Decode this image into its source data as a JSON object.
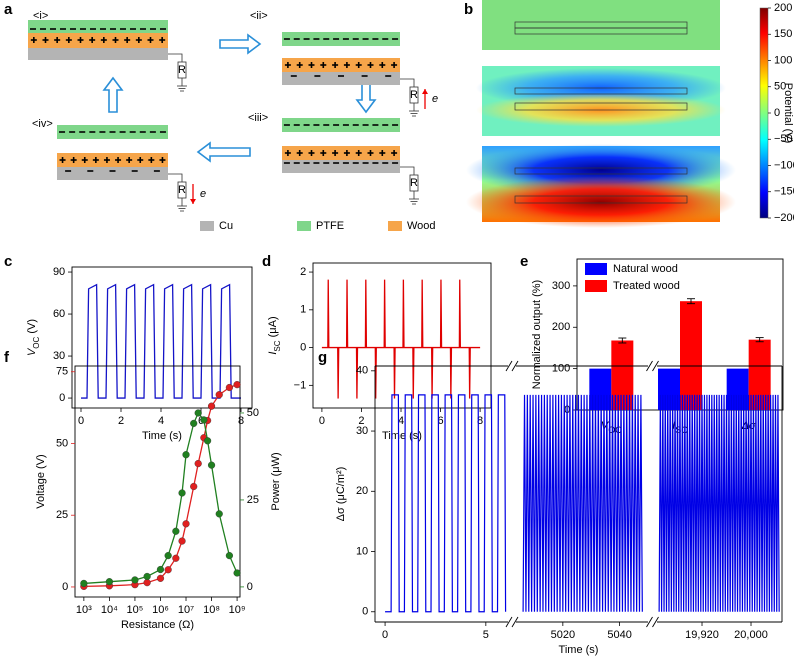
{
  "panel_labels": [
    "a",
    "b",
    "c",
    "d",
    "e",
    "f",
    "g"
  ],
  "diagram": {
    "states": [
      "<i>",
      "<ii>",
      "<iii>",
      "<iv>"
    ],
    "resistor": "R",
    "electron": "e",
    "legend": [
      "Cu",
      "PTFE",
      "Wood"
    ]
  },
  "colorbar": {
    "label": "Potential (V)",
    "lim": [
      -200,
      200
    ],
    "ticks": [
      200,
      150,
      100,
      50,
      0,
      {
        "value": -50,
        "label": "−50"
      },
      {
        "value": -100,
        "label": "−100"
      },
      {
        "value": -150,
        "label": "−150"
      },
      {
        "value": -200,
        "label": "−200"
      }
    ]
  },
  "chart_data": [
    {
      "type": "line",
      "xlabel": "Time (s)",
      "ylabel": {
        "main": "V",
        "sub": "OC",
        "unit": " (V)"
      },
      "xlim": [
        -0.45,
        8.55
      ],
      "ylim": [
        -7.1,
        93.6
      ],
      "xticks": [
        0,
        2,
        4,
        6,
        8
      ],
      "yticks": [
        0,
        30,
        60,
        90
      ],
      "color": "#1414c8",
      "x": [
        0,
        0.3,
        0.38,
        0.78,
        0.86,
        1.25,
        1.33,
        1.73,
        1.81,
        2.2,
        2.28,
        2.68,
        2.76,
        3.15,
        3.23,
        3.63,
        3.71,
        4.1,
        4.18,
        4.58,
        4.66,
        5.05,
        5.13,
        5.53,
        5.61,
        6.0,
        6.08,
        6.48,
        6.56,
        6.95,
        7.03,
        7.43,
        7.51,
        8
      ],
      "values": [
        0,
        0,
        78,
        81,
        0,
        0,
        78,
        81,
        0,
        0,
        78,
        81,
        0,
        0,
        78,
        81,
        0,
        0,
        78,
        81,
        0,
        0,
        78,
        81,
        0,
        0,
        78,
        81,
        0,
        0,
        78,
        81,
        0,
        0
      ]
    },
    {
      "type": "line",
      "xlabel": "Time (s)",
      "ylabel": {
        "main": "I",
        "sub": "SC",
        "unit": " (μA)"
      },
      "xlim": [
        -0.45,
        8.55
      ],
      "ylim": [
        -1.6,
        2.24
      ],
      "xticks": [
        0,
        2,
        4,
        6,
        8
      ],
      "yticks": [
        {
          "value": -1,
          "label": "−1"
        },
        0,
        1,
        2
      ],
      "color": "#e00000",
      "x": [
        0,
        0.3,
        0.32,
        0.35,
        0.8,
        0.82,
        0.85,
        1.25,
        1.27,
        1.3,
        1.75,
        1.77,
        1.8,
        2.2,
        2.22,
        2.25,
        2.7,
        2.72,
        2.75,
        3.15,
        3.17,
        3.2,
        3.65,
        3.67,
        3.7,
        4.1,
        4.12,
        4.15,
        4.6,
        4.62,
        4.65,
        5.05,
        5.07,
        5.1,
        5.55,
        5.57,
        5.6,
        6.0,
        6.02,
        6.05,
        6.5,
        6.52,
        6.55,
        6.95,
        6.97,
        7.0,
        7.45,
        7.47,
        7.5,
        8
      ],
      "values": [
        0,
        0,
        1.8,
        0,
        0,
        -1.35,
        0,
        0,
        1.8,
        0,
        0,
        -1.35,
        0,
        0,
        1.8,
        0,
        0,
        -1.35,
        0,
        0,
        1.8,
        0,
        0,
        -1.35,
        0,
        0,
        1.8,
        0,
        0,
        -1.35,
        0,
        0,
        1.8,
        0,
        0,
        -1.35,
        0,
        0,
        1.8,
        0,
        0,
        -1.35,
        0,
        0,
        1.8,
        0,
        0,
        -1.35,
        0,
        0
      ]
    },
    {
      "type": "bar",
      "ylabel": "Normalized output (%)",
      "categories": [
        [
          "V",
          "OC"
        ],
        [
          "I",
          "SC"
        ],
        [
          "Δσ"
        ]
      ],
      "ylim": [
        0,
        365
      ],
      "yticks": [
        0,
        100,
        200,
        300
      ],
      "legend": "upper left",
      "series": [
        {
          "name": "Natural wood",
          "color": "#0000ff",
          "values": [
            100,
            100,
            100
          ]
        },
        {
          "name": "Treated wood",
          "color": "#ff0000",
          "values": [
            168,
            263,
            170
          ],
          "errors": [
            6,
            6,
            5
          ]
        }
      ]
    },
    {
      "type": "line",
      "xscale": "log",
      "marker": "circle",
      "xlabel": "Resistance (Ω)",
      "ylabel": "Voltage (V)",
      "y2label": "Power (μW)",
      "xlim": [
        450,
        1300000000
      ],
      "xticks": [
        {
          "value": 1000,
          "label": "10³"
        },
        {
          "value": 10000,
          "label": "10⁴"
        },
        {
          "value": 100000,
          "label": "10⁵"
        },
        {
          "value": 1000000,
          "label": "10⁶"
        },
        {
          "value": 10000000,
          "label": "10⁷"
        },
        {
          "value": 100000000,
          "label": "10⁸"
        },
        {
          "value": 1000000000,
          "label": "10⁹"
        }
      ],
      "ylim": [
        -3.5,
        77
      ],
      "yticks": [
        0,
        25,
        50,
        75
      ],
      "y2lim": [
        -2.9,
        63.5
      ],
      "y2ticks": [
        0,
        25,
        50
      ],
      "x": [
        1000,
        10000,
        100000,
        300000,
        1000000,
        2000000,
        4000000,
        7000000,
        10000000,
        20000000,
        30000000,
        50000000,
        70000000,
        100000000,
        200000000,
        500000000,
        1000000000
      ],
      "series": [
        {
          "color": "#e02020",
          "values": [
            0.2,
            0.4,
            0.8,
            1.5,
            3,
            6,
            10,
            16,
            22,
            35,
            43,
            52,
            58,
            63,
            67,
            69.5,
            70.5
          ]
        },
        {
          "color": "#208020",
          "axis": "y2",
          "values": [
            1,
            1.5,
            2,
            3,
            5,
            9,
            16,
            27,
            38,
            47,
            50,
            48,
            42,
            35,
            21,
            9,
            4
          ]
        }
      ]
    },
    {
      "type": "broken-line",
      "xlabel": "Time (s)",
      "ylabel": "Δσ (μC/m²)",
      "color": "#0000e6",
      "ylim": [
        -1.7,
        40.8
      ],
      "yticks": [
        0,
        10,
        20,
        30,
        40
      ],
      "segments": [
        {
          "xlim": [
            -0.5,
            6.1
          ],
          "xticks": [
            0,
            5
          ],
          "x": [
            0,
            0.3,
            0.34,
            0.66,
            0.7,
            0.96,
            1.0,
            1.32,
            1.36,
            1.62,
            1.66,
            1.98,
            2.02,
            2.28,
            2.32,
            2.64,
            2.68,
            2.94,
            2.98,
            3.3,
            3.34,
            3.6,
            3.64,
            3.96,
            4.0,
            4.26,
            4.3,
            4.62,
            4.66,
            4.92,
            4.96,
            5.28,
            5.32,
            5.58,
            5.62,
            5.94,
            5.98
          ],
          "values": [
            0,
            0,
            36,
            36,
            0,
            0,
            36,
            36,
            0,
            0,
            36,
            36,
            0,
            0,
            36,
            36,
            0,
            0,
            36,
            36,
            0,
            0,
            36,
            36,
            0,
            0,
            36,
            36,
            0,
            0,
            36,
            36,
            0,
            0,
            36,
            36,
            0
          ]
        },
        {
          "xlim": [
            5003.5,
            5050
          ],
          "xticks": [
            5020,
            5040
          ],
          "x": [
            5006,
            5006.5,
            5007,
            5007.5,
            5008,
            5008.5,
            5009,
            5009.5,
            5010,
            5010.5,
            5011,
            5011.5,
            5012,
            5012.5,
            5013,
            5013.5,
            5014,
            5014.5,
            5015,
            5015.5,
            5016,
            5016.5,
            5017,
            5017.5,
            5018,
            5018.5,
            5019,
            5019.5,
            5020,
            5020.5,
            5021,
            5021.5,
            5022,
            5022.5,
            5023,
            5023.5,
            5024,
            5024.5,
            5025,
            5025.5,
            5026,
            5026.5,
            5027,
            5027.5,
            5028,
            5028.5,
            5029,
            5029.5,
            5030,
            5030.5,
            5031,
            5031.5,
            5032,
            5032.5,
            5033,
            5033.5,
            5034,
            5034.5,
            5035,
            5035.5,
            5036,
            5036.5,
            5037,
            5037.5,
            5038,
            5038.5,
            5039,
            5039.5,
            5040,
            5040.5,
            5041,
            5041.5,
            5042,
            5042.5,
            5043,
            5043.5,
            5044,
            5044.5,
            5045,
            5045.5,
            5046,
            5046.5,
            5047,
            5047.5,
            5048
          ],
          "values": [
            0,
            36,
            0,
            36,
            0,
            36,
            0,
            36,
            0,
            36,
            0,
            36,
            0,
            36,
            0,
            36,
            0,
            36,
            0,
            36,
            0,
            36,
            0,
            36,
            0,
            36,
            0,
            36,
            0,
            36,
            0,
            36,
            0,
            36,
            0,
            36,
            0,
            36,
            0,
            36,
            0,
            36,
            0,
            36,
            0,
            36,
            0,
            36,
            0,
            36,
            0,
            36,
            0,
            36,
            0,
            36,
            0,
            36,
            0,
            36,
            0,
            36,
            0,
            36,
            0,
            36,
            0,
            36,
            0,
            36,
            0,
            36,
            0,
            36,
            0,
            36,
            0,
            36,
            0,
            36,
            0,
            36,
            0,
            36,
            0
          ]
        },
        {
          "xlim": [
            19846.5,
            20050.6
          ],
          "xticks": [
            {
              "value": 19920,
              "label": "19,920"
            },
            {
              "value": 20000,
              "label": "20,000"
            }
          ],
          "x": [
            19850,
            19852,
            19854,
            19856,
            19858,
            19860,
            19862,
            19864,
            19866,
            19868,
            19870,
            19872,
            19874,
            19876,
            19878,
            19880,
            19882,
            19884,
            19886,
            19888,
            19890,
            19892,
            19894,
            19896,
            19898,
            19900,
            19902,
            19904,
            19906,
            19908,
            19910,
            19912,
            19914,
            19916,
            19918,
            19920,
            19922,
            19924,
            19926,
            19928,
            19930,
            19932,
            19934,
            19936,
            19938,
            19940,
            19942,
            19944,
            19946,
            19948,
            19950,
            19952,
            19954,
            19956,
            19958,
            19960,
            19962,
            19964,
            19966,
            19968,
            19970,
            19972,
            19974,
            19976,
            19978,
            19980,
            19982,
            19984,
            19986,
            19988,
            19990,
            19992,
            19994,
            19996,
            19998,
            20000,
            20002,
            20004,
            20006,
            20008,
            20010,
            20012,
            20014,
            20016,
            20018,
            20020,
            20022,
            20024,
            20026,
            20028,
            20030,
            20032,
            20034,
            20036,
            20038,
            20040,
            20042,
            20044,
            20046
          ],
          "values": [
            0,
            36,
            0,
            36,
            0,
            36,
            0,
            36,
            0,
            36,
            0,
            36,
            0,
            36,
            0,
            36,
            0,
            36,
            0,
            36,
            0,
            36,
            0,
            36,
            0,
            36,
            0,
            36,
            0,
            36,
            0,
            36,
            0,
            36,
            0,
            36,
            0,
            36,
            0,
            36,
            0,
            36,
            0,
            36,
            0,
            36,
            0,
            36,
            0,
            36,
            0,
            36,
            0,
            36,
            0,
            36,
            0,
            36,
            0,
            36,
            0,
            36,
            0,
            36,
            0,
            36,
            0,
            36,
            0,
            36,
            0,
            36,
            0,
            36,
            0,
            36,
            0,
            36,
            0,
            36,
            0,
            36,
            0,
            36,
            0,
            36,
            0,
            36,
            0,
            36,
            0,
            36,
            0,
            36,
            0,
            36,
            0,
            36,
            0
          ]
        }
      ]
    }
  ]
}
